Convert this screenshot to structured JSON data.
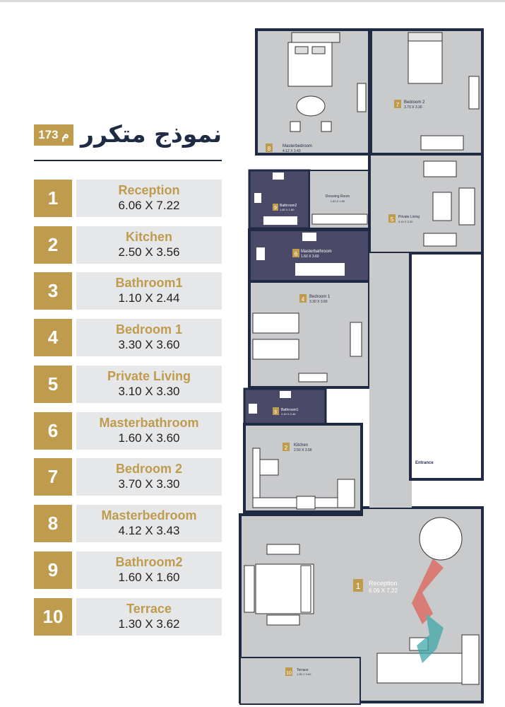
{
  "header": {
    "title": "نموذج متكرر",
    "area": "173 م"
  },
  "rooms": [
    {
      "num": "1",
      "name": "Reception",
      "dim": "6.06 X 7.22"
    },
    {
      "num": "2",
      "name": "Kitchen",
      "dim": "2.50 X 3.56"
    },
    {
      "num": "3",
      "name": "Bathroom1",
      "dim": "1.10 X 2.44"
    },
    {
      "num": "4",
      "name": "Bedroom 1",
      "dim": "3.30 X 3.60"
    },
    {
      "num": "5",
      "name": "Private Living",
      "dim": "3.10 X 3.30"
    },
    {
      "num": "6",
      "name": "Masterbathroom",
      "dim": "1.60 X 3.60"
    },
    {
      "num": "7",
      "name": "Bedroom 2",
      "dim": "3.70 X 3.30"
    },
    {
      "num": "8",
      "name": "Masterbedroom",
      "dim": "4.12 X 3.43"
    },
    {
      "num": "9",
      "name": "Bathroom2",
      "dim": "1.60 X 1.60"
    },
    {
      "num": "10",
      "name": "Terrace",
      "dim": "1.30 X 3.62"
    }
  ],
  "plan": {
    "labels": {
      "master_bedroom_name": "Masterbedroom",
      "master_bedroom_dim": "4.12 X 3.43",
      "bedroom2_name": "Bedroom 2",
      "bedroom2_dim": "3.70 X 3.30",
      "bathroom2_name": "Bathroom2",
      "bathroom2_dim": "1.60 X 1.60",
      "dressing_name": "Dressing Room",
      "dressing_dim": "1.60 X 1.60",
      "private_living_name": "Private Living",
      "private_living_dim": "3.10 X 3.30",
      "master_bath_name": "Masterbathroom",
      "master_bath_dim": "1.60 X 3.60",
      "bedroom1_name": "Bedroom 1",
      "bedroom1_dim": "3.30 X 3.60",
      "bathroom1_name": "Bathroom1",
      "bathroom1_dim": "1.10 X 2.44",
      "kitchen_name": "Kitchen",
      "kitchen_dim": "2.50 X 3.56",
      "entrance": "Entrance",
      "reception_name": "Reception",
      "reception_dim": "6.06 X 7.22",
      "terrace_name": "Terrace",
      "terrace_dim": "1.30 X 3.62"
    },
    "markers": {
      "m1": "1",
      "m2": "2",
      "m3": "3",
      "m4": "4",
      "m5": "5",
      "m6": "6",
      "m7": "7",
      "m8": "8",
      "m9": "9",
      "m10": "10"
    }
  },
  "colors": {
    "gold": "#bf9b4e",
    "navy": "#1f2a44",
    "floor": "#c9cacc",
    "bath_floor": "#4a4a68",
    "wall": "#1f2a44"
  }
}
